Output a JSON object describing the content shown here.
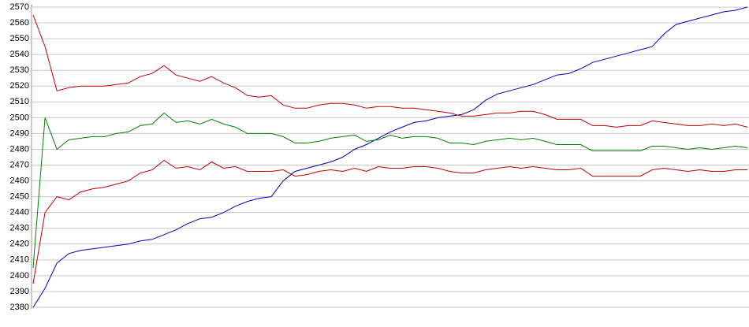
{
  "chart_data": {
    "type": "line",
    "categories": [
      null,
      null,
      null,
      null,
      null,
      null,
      null,
      null,
      null,
      null,
      null,
      null,
      null,
      null,
      null,
      null,
      null,
      null,
      null,
      null,
      null,
      null,
      null,
      null,
      null,
      null,
      null,
      null,
      null,
      null,
      null,
      null,
      null,
      null,
      null,
      null,
      null,
      null,
      null,
      null,
      null,
      null,
      null,
      null,
      null,
      null,
      null,
      null,
      null,
      null,
      null,
      null,
      null,
      null,
      null,
      null,
      null,
      null,
      null,
      null,
      null
    ],
    "ylim": [
      2380,
      2570
    ],
    "yticks": [
      2380,
      2390,
      2400,
      2410,
      2420,
      2430,
      2440,
      2450,
      2460,
      2470,
      2480,
      2490,
      2500,
      2510,
      2520,
      2530,
      2540,
      2550,
      2560,
      2570
    ],
    "grid": true,
    "series": [
      {
        "color": "#0000c0",
        "values": [
          2380,
          2392,
          2408,
          2414,
          2416,
          2417,
          2418,
          2419,
          2420,
          2422,
          2423,
          2426,
          2429,
          2433,
          2436,
          2437,
          2440,
          2444,
          2447,
          2449,
          2450,
          2460,
          2466,
          2468,
          2470,
          2472,
          2475,
          2480,
          2483,
          2487,
          2491,
          2494,
          2497,
          2498,
          2500,
          2501,
          2502,
          2505,
          2511,
          2515,
          2517,
          2519,
          2521,
          2524,
          2527,
          2528,
          2531,
          2535,
          2537,
          2539,
          2541,
          2543,
          2545,
          2553,
          2559,
          2561,
          2563,
          2565,
          2567,
          2568,
          2570
        ]
      },
      {
        "color": "#008000",
        "values": [
          2405,
          2500,
          2480,
          2486,
          2487,
          2488,
          2488,
          2490,
          2491,
          2495,
          2496,
          2503,
          2497,
          2498,
          2496,
          2499,
          2496,
          2494,
          2490,
          2490,
          2490,
          2488,
          2484,
          2484,
          2485,
          2487,
          2488,
          2489,
          2485,
          2486,
          2489,
          2487,
          2488,
          2488,
          2487,
          2484,
          2484,
          2483,
          2485,
          2486,
          2487,
          2486,
          2487,
          2485,
          2483,
          2483,
          2483,
          2479,
          2479,
          2479,
          2479,
          2479,
          2482,
          2482,
          2481,
          2480,
          2481,
          2480,
          2481,
          2482,
          2481
        ]
      },
      {
        "color": "#c00000",
        "values": [
          2565,
          2545,
          2517,
          2519,
          2520,
          2520,
          2520,
          2521,
          2522,
          2526,
          2528,
          2533,
          2527,
          2525,
          2523,
          2526,
          2522,
          2519,
          2514,
          2513,
          2514,
          2508,
          2506,
          2506,
          2508,
          2509,
          2509,
          2508,
          2506,
          2507,
          2507,
          2506,
          2506,
          2505,
          2504,
          2503,
          2501,
          2501,
          2502,
          2503,
          2503,
          2504,
          2504,
          2502,
          2499,
          2499,
          2499,
          2495,
          2495,
          2494,
          2495,
          2495,
          2498,
          2497,
          2496,
          2495,
          2495,
          2496,
          2495,
          2496,
          2494
        ]
      },
      {
        "color": "#c00000",
        "values": [
          2395,
          2440,
          2450,
          2448,
          2453,
          2455,
          2456,
          2458,
          2460,
          2465,
          2467,
          2473,
          2468,
          2469,
          2467,
          2472,
          2468,
          2469,
          2466,
          2466,
          2466,
          2467,
          2463,
          2464,
          2466,
          2467,
          2466,
          2468,
          2466,
          2469,
          2468,
          2468,
          2469,
          2469,
          2468,
          2466,
          2465,
          2465,
          2467,
          2468,
          2469,
          2468,
          2469,
          2468,
          2467,
          2467,
          2468,
          2463,
          2463,
          2463,
          2463,
          2463,
          2467,
          2468,
          2467,
          2466,
          2467,
          2466,
          2466,
          2467,
          2467
        ]
      }
    ]
  }
}
